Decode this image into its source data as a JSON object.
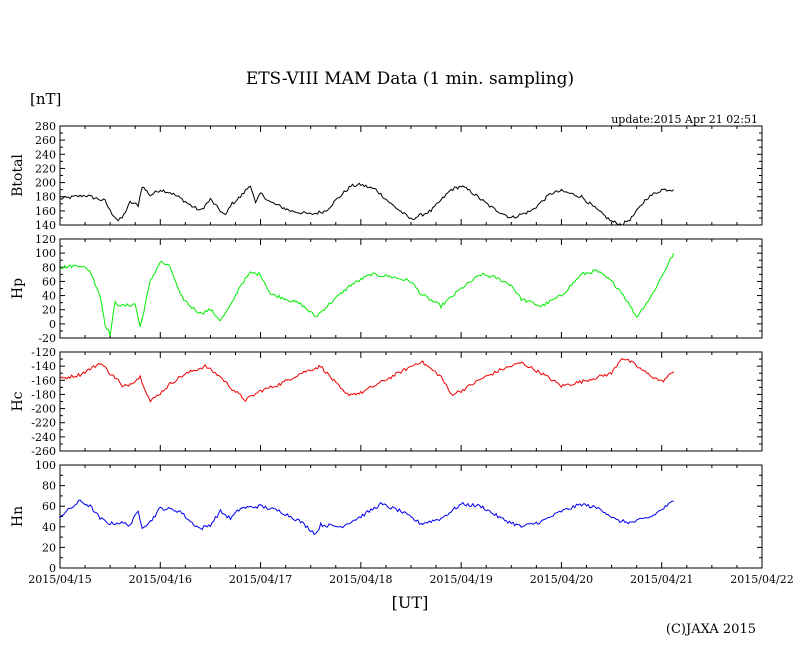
{
  "chart_data": [
    {
      "type": "line",
      "panel_label": "Btotal",
      "color": "#000000",
      "ylim": [
        140,
        280
      ],
      "yticks": [
        140,
        160,
        180,
        200,
        220,
        240,
        260,
        280
      ],
      "tick_labels": [
        "140",
        "160",
        "180",
        "200",
        "220",
        "240",
        "260",
        "280"
      ],
      "x": [
        0,
        0.25,
        0.45,
        0.5,
        0.58,
        0.62,
        0.7,
        0.78,
        0.82,
        0.9,
        1.0,
        1.1,
        1.2,
        1.3,
        1.4,
        1.5,
        1.6,
        1.65,
        1.7,
        1.8,
        1.9,
        1.95,
        2.0,
        2.1,
        2.3,
        2.5,
        2.65,
        2.75,
        2.9,
        3.0,
        3.15,
        3.3,
        3.5,
        3.7,
        3.9,
        4.0,
        4.1,
        4.3,
        4.5,
        4.7,
        4.9,
        5.0,
        5.2,
        5.35,
        5.5,
        5.6,
        5.7,
        5.85,
        6.0,
        6.12
      ],
      "values": [
        177,
        182,
        174,
        160,
        146,
        150,
        172,
        168,
        195,
        182,
        190,
        186,
        178,
        168,
        160,
        176,
        160,
        153,
        168,
        180,
        197,
        170,
        185,
        172,
        160,
        155,
        160,
        175,
        195,
        197,
        190,
        170,
        148,
        160,
        190,
        195,
        187,
        165,
        150,
        160,
        185,
        188,
        180,
        162,
        145,
        140,
        150,
        178,
        190,
        190
      ]
    },
    {
      "type": "line",
      "panel_label": "Hp",
      "color": "#00ee00",
      "ylim": [
        -20,
        120
      ],
      "yticks": [
        -20,
        0,
        20,
        40,
        60,
        80,
        100,
        120
      ],
      "tick_labels": [
        "-20",
        "0",
        "20",
        "40",
        "60",
        "80",
        "100",
        "120"
      ],
      "x": [
        0,
        0.2,
        0.3,
        0.4,
        0.45,
        0.5,
        0.55,
        0.62,
        0.75,
        0.8,
        0.9,
        1.0,
        1.1,
        1.2,
        1.3,
        1.4,
        1.5,
        1.6,
        1.7,
        1.8,
        1.9,
        2.0,
        2.1,
        2.2,
        2.4,
        2.55,
        2.7,
        2.9,
        3.1,
        3.3,
        3.5,
        3.6,
        3.8,
        4.0,
        4.2,
        4.35,
        4.5,
        4.6,
        4.8,
        5.0,
        5.2,
        5.35,
        5.5,
        5.6,
        5.75,
        5.9,
        6.12
      ],
      "values": [
        80,
        83,
        75,
        40,
        0,
        -15,
        30,
        25,
        28,
        -5,
        60,
        88,
        80,
        40,
        25,
        15,
        20,
        5,
        25,
        55,
        72,
        70,
        42,
        38,
        28,
        10,
        30,
        55,
        70,
        67,
        60,
        42,
        25,
        50,
        70,
        65,
        55,
        35,
        25,
        40,
        70,
        75,
        60,
        45,
        10,
        40,
        100
      ]
    },
    {
      "type": "line",
      "panel_label": "Hc",
      "color": "#ee0000",
      "ylim": [
        -260,
        -120
      ],
      "yticks": [
        -260,
        -240,
        -220,
        -200,
        -180,
        -160,
        -140,
        -120
      ],
      "tick_labels": [
        "-260",
        "-240",
        "-220",
        "-200",
        "-180",
        "-160",
        "-140",
        "-120"
      ],
      "x": [
        0,
        0.2,
        0.35,
        0.4,
        0.5,
        0.58,
        0.62,
        0.7,
        0.8,
        0.9,
        1.0,
        1.1,
        1.2,
        1.3,
        1.45,
        1.6,
        1.7,
        1.85,
        2.0,
        2.2,
        2.4,
        2.6,
        2.85,
        3.0,
        3.2,
        3.4,
        3.6,
        3.8,
        3.9,
        4.0,
        4.2,
        4.4,
        4.6,
        4.8,
        5.0,
        5.2,
        5.5,
        5.6,
        5.7,
        5.85,
        6.0,
        6.12
      ],
      "values": [
        -158,
        -152,
        -140,
        -135,
        -150,
        -160,
        -170,
        -165,
        -155,
        -190,
        -178,
        -165,
        -155,
        -148,
        -140,
        -155,
        -170,
        -188,
        -175,
        -165,
        -150,
        -140,
        -180,
        -178,
        -163,
        -148,
        -133,
        -155,
        -180,
        -175,
        -158,
        -145,
        -135,
        -150,
        -168,
        -162,
        -150,
        -128,
        -135,
        -150,
        -162,
        -148
      ]
    },
    {
      "type": "line",
      "panel_label": "Hn",
      "color": "#0000ee",
      "ylim": [
        0,
        100
      ],
      "yticks": [
        0,
        20,
        40,
        60,
        80,
        100
      ],
      "tick_labels": [
        "0",
        "20",
        "40",
        "60",
        "80",
        "100"
      ],
      "x": [
        0,
        0.2,
        0.3,
        0.4,
        0.5,
        0.6,
        0.7,
        0.78,
        0.82,
        0.9,
        1.0,
        1.1,
        1.2,
        1.3,
        1.4,
        1.5,
        1.6,
        1.7,
        1.8,
        2.0,
        2.2,
        2.4,
        2.55,
        2.6,
        2.8,
        3.0,
        3.2,
        3.4,
        3.6,
        3.8,
        4.0,
        4.2,
        4.4,
        4.6,
        4.8,
        5.0,
        5.2,
        5.4,
        5.55,
        5.7,
        5.9,
        6.12
      ],
      "values": [
        50,
        65,
        60,
        48,
        43,
        44,
        42,
        55,
        40,
        45,
        58,
        57,
        55,
        45,
        38,
        42,
        55,
        48,
        58,
        60,
        55,
        45,
        33,
        42,
        40,
        50,
        62,
        55,
        43,
        48,
        62,
        60,
        48,
        40,
        45,
        55,
        62,
        57,
        46,
        44,
        50,
        65
      ]
    }
  ],
  "title": "ETS-VIII MAM Data (1 min. sampling)",
  "unit_label": "[nT]",
  "update_text": "update:2015 Apr 21 02:51",
  "xlabel": "[UT]",
  "x_tick_labels": [
    "2015/04/15",
    "2015/04/16",
    "2015/04/17",
    "2015/04/18",
    "2015/04/19",
    "2015/04/20",
    "2015/04/21",
    "2015/04/22"
  ],
  "xlim": [
    0,
    7
  ],
  "copyright": "(C)JAXA 2015"
}
